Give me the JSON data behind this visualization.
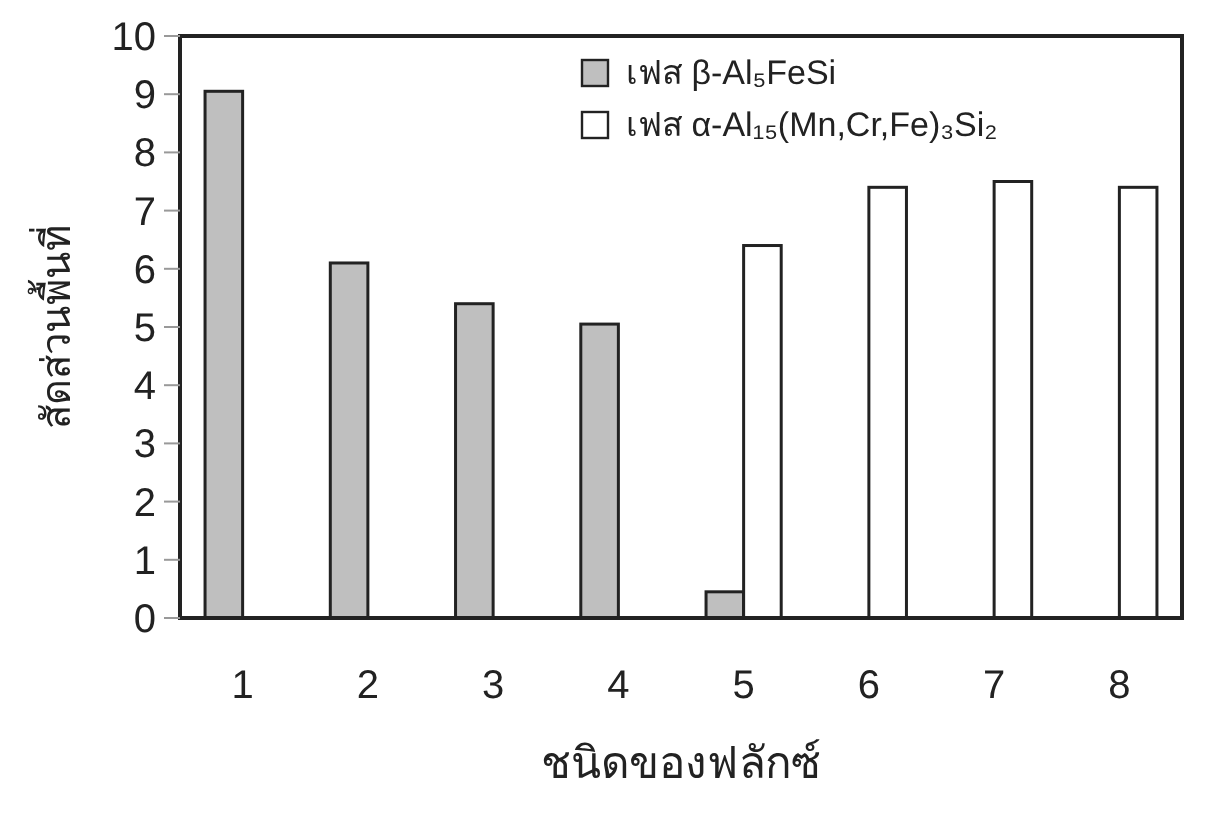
{
  "chart_data": {
    "type": "bar",
    "xlabel": "ชนิดของฟลักซ์",
    "ylabel": "สัดส่วนพื้นที่",
    "categories": [
      "1",
      "2",
      "3",
      "4",
      "5",
      "6",
      "7",
      "8"
    ],
    "series": [
      {
        "name": "เฟส β-Al₅FeSi",
        "color": "#bfbfbf",
        "values": [
          9.05,
          6.1,
          5.4,
          5.05,
          0.45,
          null,
          null,
          null
        ]
      },
      {
        "name": "เฟส α-Al₁₅(Mn,Cr,Fe)₃Si₂",
        "color": "#ffffff",
        "values": [
          null,
          null,
          null,
          null,
          6.4,
          7.4,
          7.5,
          7.4
        ]
      }
    ],
    "ylim": [
      0,
      10
    ],
    "yticks": [
      0,
      1,
      2,
      3,
      4,
      5,
      6,
      7,
      8,
      9,
      10
    ],
    "grid": false,
    "legend": "top right"
  }
}
